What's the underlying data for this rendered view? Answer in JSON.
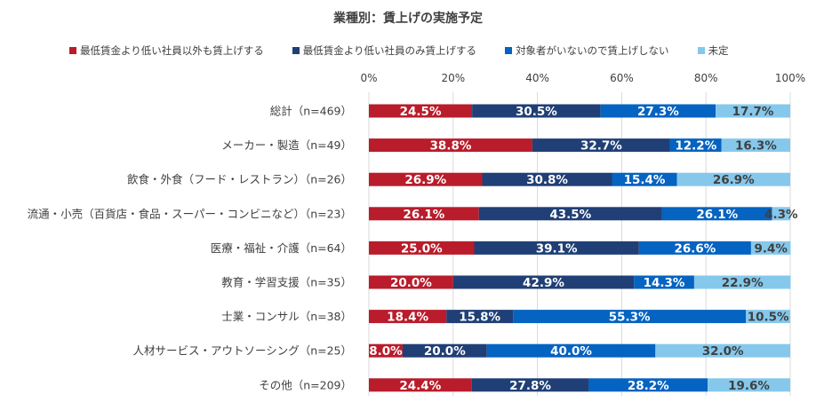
{
  "chart_data": {
    "type": "bar",
    "orientation": "horizontal-stacked-100",
    "title": "業種別：賃上げの実施予定",
    "categories": [
      "総計（n=469）",
      "メーカー・製造（n=49）",
      "飲食・外食（フード・レストラン）（n=26）",
      "流通・小売（百貨店・食品・スーパー・コンビニなど）（n=23）",
      "医療・福祉・介護（n=64）",
      "教育・学習支援（n=35）",
      "士業・コンサル（n=38）",
      "人材サービス・アウトソーシング（n=25）",
      "その他（n=209）"
    ],
    "series": [
      {
        "name": "最低賃金より低い社員以外も賃上げする",
        "color": "#B91C2B",
        "label_color": "#ffffff",
        "values": [
          24.5,
          38.8,
          26.9,
          26.1,
          25.0,
          20.0,
          18.4,
          8.0,
          24.4
        ]
      },
      {
        "name": "最低賃金より低い社員のみ賃上げする",
        "color": "#203F76",
        "label_color": "#ffffff",
        "values": [
          30.5,
          32.7,
          30.8,
          43.5,
          39.1,
          42.9,
          15.8,
          20.0,
          27.8
        ]
      },
      {
        "name": "対象者がいないので賃上げしない",
        "color": "#0563C1",
        "label_color": "#ffffff",
        "values": [
          27.3,
          12.2,
          15.4,
          26.1,
          26.6,
          14.3,
          55.3,
          40.0,
          28.2
        ]
      },
      {
        "name": "未定",
        "color": "#85C8EC",
        "label_color": "#404040",
        "values": [
          17.7,
          16.3,
          26.9,
          4.3,
          9.4,
          22.9,
          10.5,
          32.0,
          19.6
        ]
      }
    ],
    "xlim": [
      0,
      100
    ],
    "xticks": [
      "0%",
      "20%",
      "40%",
      "60%",
      "80%",
      "100%"
    ],
    "grid": true,
    "legend_position": "top"
  }
}
